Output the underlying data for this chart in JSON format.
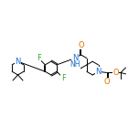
{
  "background_color": "#ffffff",
  "figsize": [
    1.52,
    1.52
  ],
  "dpi": 100,
  "atom_colors": {
    "N": "#1a6fcc",
    "O": "#e07000",
    "F": "#33aa33",
    "C": "#000000"
  },
  "bond_lw": 0.7,
  "font_size": 5.5,
  "xlim": [
    0,
    10.5
  ],
  "ylim": [
    1.0,
    8.5
  ]
}
